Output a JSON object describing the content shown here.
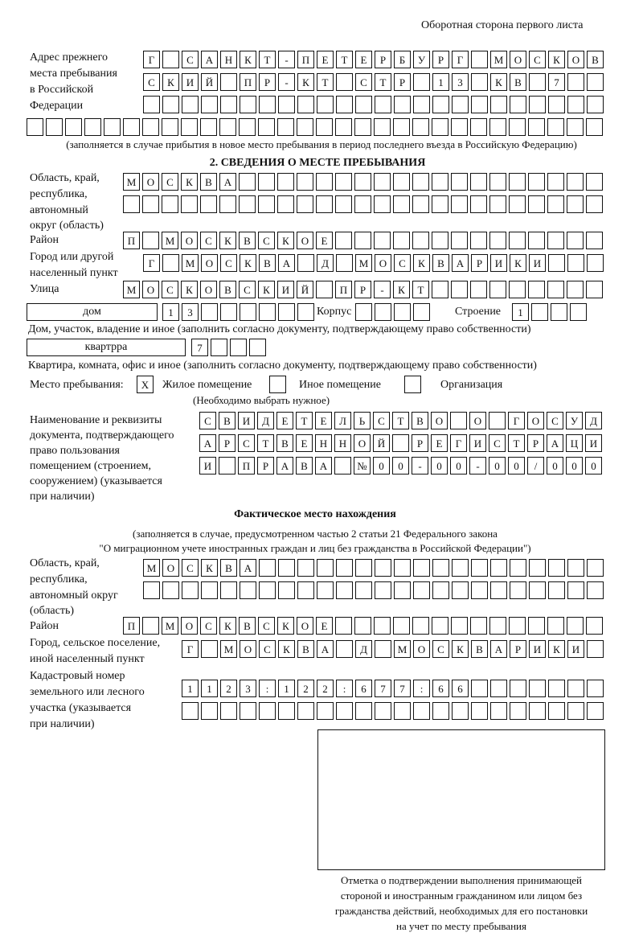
{
  "header": "Оборотная сторона первого листа",
  "prev_address": {
    "label": [
      "Адрес прежнего",
      "места пребывания",
      "в Российской",
      "Федерации"
    ],
    "rows": [
      "Г САНКТ-ПЕТЕРБУРГ МОСКОВ",
      "СКИЙ ПР-КТ СТР 13 КВ 7",
      "",
      ""
    ],
    "note": "(заполняется в случае прибытия в новое место пребывания в период последнего въезда в Российскую Федерацию)"
  },
  "section2": {
    "title": "2. СВЕДЕНИЯ О МЕСТЕ ПРЕБЫВАНИЯ",
    "region_label": [
      "Область, край,",
      "республика,",
      "автономный",
      "округ (область)"
    ],
    "region_rows": [
      "МОСКВА",
      ""
    ],
    "district_label": "Район",
    "district": "П МОСКВСКОЕ",
    "city_label": [
      "Город или другой",
      "населенный пункт"
    ],
    "city": "Г МОСКВА Д МОСКВАРИКИ",
    "street_label": "Улица",
    "street": "МОСКОВСКИЙ ПР-КТ",
    "house_type": "дом",
    "house": "13",
    "korpus_label": "Корпус",
    "korpus": "",
    "building_label": "Строение",
    "building": "1",
    "house_note": "Дом, участок, владение и иное (заполнить согласно документу, подтверждающему право собственности)",
    "flat_type": "квартрра",
    "flat": "7",
    "flat_note": "Квартира, комната, офис и иное (заполнить согласно документу, подтверждающему право собственности)",
    "place_label": "Место пребывания:",
    "options": [
      {
        "label": "Жилое помещение",
        "mark": "X"
      },
      {
        "label": "Иное помещение",
        "mark": ""
      },
      {
        "label": "Организация",
        "mark": ""
      }
    ],
    "choose_note": "(Необходимо выбрать нужное)",
    "doc_label": [
      "Наименование и реквизиты",
      "документа, подтверждающего",
      "право пользования",
      "помещением (строением,",
      "сооружением) (указывается",
      "при наличии)"
    ],
    "doc_rows": [
      "СВИДЕТЕЛЬСТВО О ГОСУД",
      "АРСТВЕННОЙ РЕГИСТРАЦИ",
      "И ПРАВА №00-00-00/000"
    ]
  },
  "actual": {
    "title": "Фактическое место нахождения",
    "note1": "(заполняется в случае, предусмотренном частью 2 статьи 21 Федерального закона",
    "note2": "\"О миграционном учете иностранных граждан и лиц без гражданства в Российской Федерации\")",
    "region_label": [
      "Область, край,",
      "республика,",
      "автономный округ",
      "(область)"
    ],
    "region_rows": [
      "МОСКВА",
      ""
    ],
    "district_label": "Район",
    "district": "П МОСКВСКОЕ",
    "city_label": [
      "Город, сельское поселение,",
      "иной населенный пункт"
    ],
    "city": "Г МОСКВА Д МОСКВАРИКИ",
    "cadastre_label": [
      "Кадастровый номер",
      "земельного или лесного",
      "участка (указывается",
      "при наличии)"
    ],
    "cadastre_rows": [
      "1123:122:677:66",
      ""
    ]
  },
  "stamp_caption": [
    "Отметка о подтверждении выполнения принимающей",
    "стороной и иностранным гражданином или лицом без",
    "гражданства действий, необходимых для его постановки",
    "на учет по месту пребывания"
  ]
}
